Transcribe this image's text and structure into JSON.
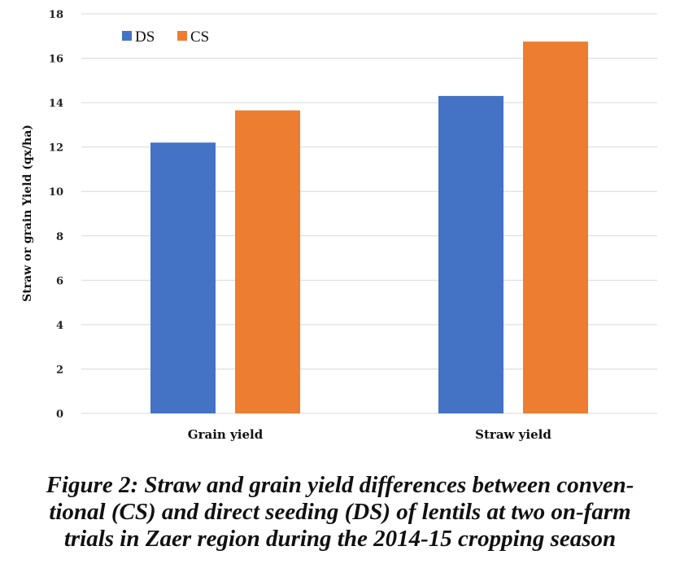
{
  "chart_data": {
    "type": "bar",
    "categories": [
      "Grain yield",
      "Straw yield"
    ],
    "series": [
      {
        "name": "DS",
        "values": [
          12.2,
          14.3
        ],
        "color": "#4472c4"
      },
      {
        "name": "CS",
        "values": [
          13.65,
          16.75
        ],
        "color": "#ed7d31"
      }
    ],
    "ylabel": "Straw or grain Yield (qx/ha)",
    "xlabel": "",
    "ylim": [
      0,
      18
    ],
    "yticks": [
      0,
      2,
      4,
      6,
      8,
      10,
      12,
      14,
      16,
      18
    ],
    "grid": true,
    "legend_position": "top-left"
  },
  "caption": {
    "line1": "Figure 2: Straw and grain yield differences between conven-",
    "line2": "tional (CS) and direct seeding (DS) of lentils at two on-farm",
    "line3": "trials in Zaer region during the 2014-15 cropping season"
  }
}
